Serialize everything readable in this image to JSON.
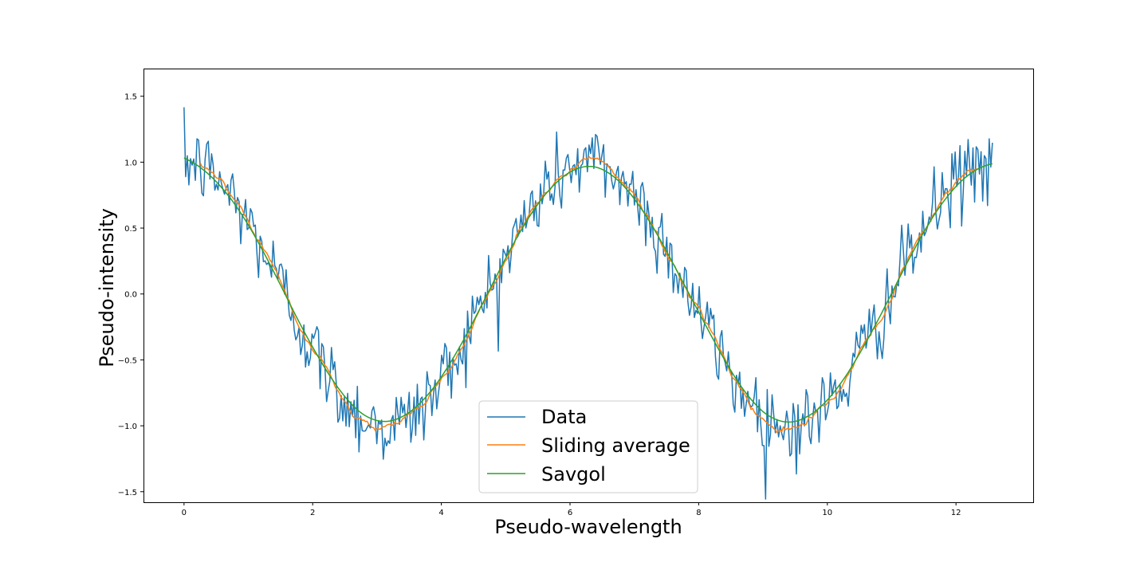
{
  "chart_data": {
    "type": "line",
    "title": "",
    "xlabel": "Pseudo-wavelength",
    "ylabel": "Pseudo-intensity",
    "xlim": [
      -0.63,
      13.2
    ],
    "ylim": [
      -1.58,
      1.71
    ],
    "xticks": [
      0,
      2,
      4,
      6,
      8,
      10,
      12
    ],
    "xtick_labels": [
      "0",
      "2",
      "4",
      "6",
      "8",
      "10",
      "12"
    ],
    "yticks": [
      -1.5,
      -1.0,
      -0.5,
      0.0,
      0.5,
      1.0,
      1.5
    ],
    "ytick_labels": [
      "−1.5",
      "−1.0",
      "−0.5",
      "0.0",
      "0.5",
      "1.0",
      "1.5"
    ],
    "grid": false,
    "legend_position": "lower-center",
    "x_start": 0,
    "x_end": 12.566,
    "num_points": 500,
    "series": [
      {
        "name": "Data",
        "color": "#1f77b4",
        "description": "noisy samples of cos(x) with Gaussian noise (std ~0.15)",
        "noise_std": 0.15,
        "linewidth": 1.5
      },
      {
        "name": "Sliding average",
        "color": "#ff7f0e",
        "description": "moving average of the data",
        "linewidth": 1.5
      },
      {
        "name": "Savgol",
        "color": "#2ca02c",
        "description": "Savitzky-Golay smoothed data",
        "linewidth": 1.5
      }
    ]
  }
}
